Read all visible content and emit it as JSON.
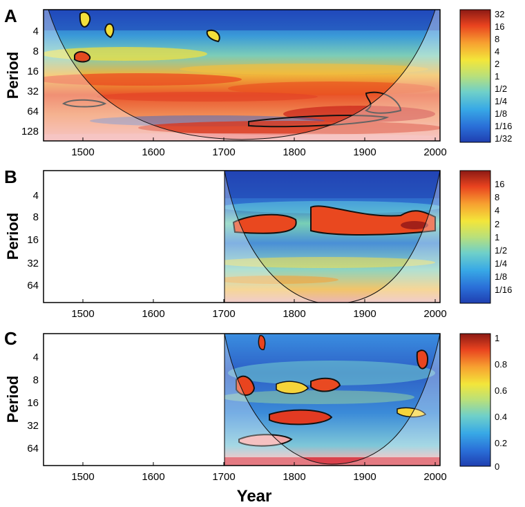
{
  "chart_data": [
    {
      "type": "heatmap",
      "panel_label": "A",
      "title": "",
      "xlabel": "",
      "ylabel": "Period",
      "xlim": [
        1450,
        2010
      ],
      "x_ticks": [
        "1500",
        "1600",
        "1700",
        "1800",
        "1900",
        "2000"
      ],
      "y_ticks": [
        "4",
        "8",
        "16",
        "32",
        "64",
        "128"
      ],
      "colorbar_ticks": [
        "32",
        "16",
        "8",
        "4",
        "2",
        "1",
        "1/2",
        "1/4",
        "1/8",
        "1/16",
        "1/32"
      ],
      "data_start_year": 1450
    },
    {
      "type": "heatmap",
      "panel_label": "B",
      "title": "",
      "xlabel": "",
      "ylabel": "Period",
      "xlim": [
        1450,
        2010
      ],
      "x_ticks": [
        "1500",
        "1600",
        "1700",
        "1800",
        "1900",
        "2000"
      ],
      "y_ticks": [
        "4",
        "8",
        "16",
        "32",
        "64"
      ],
      "colorbar_ticks": [
        "16",
        "8",
        "4",
        "2",
        "1",
        "1/2",
        "1/4",
        "1/8",
        "1/16"
      ],
      "data_start_year": 1700
    },
    {
      "type": "heatmap",
      "panel_label": "C",
      "title": "",
      "xlabel": "Year",
      "ylabel": "Period",
      "xlim": [
        1450,
        2010
      ],
      "x_ticks": [
        "1500",
        "1600",
        "1700",
        "1800",
        "1900",
        "2000"
      ],
      "y_ticks": [
        "4",
        "8",
        "16",
        "32",
        "64"
      ],
      "colorbar_ticks": [
        "1",
        "0.8",
        "0.6",
        "0.4",
        "0.2",
        "0"
      ],
      "data_start_year": 1700
    }
  ]
}
